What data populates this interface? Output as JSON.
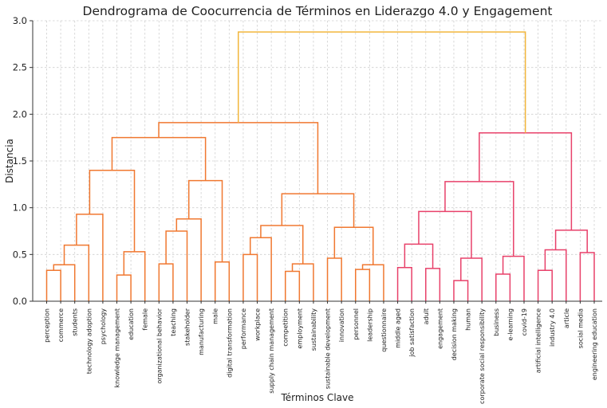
{
  "chart_data": {
    "type": "dendrogram",
    "title": "Dendrograma de Coocurrencia de Términos en Liderazgo 4.0 y Engagement",
    "xlabel": "Términos Clave",
    "ylabel": "Distancia",
    "ylim": [
      0,
      3.0
    ],
    "yticks": [
      "0.0",
      "0.5",
      "1.0",
      "1.5",
      "2.0",
      "2.5",
      "3.0"
    ],
    "grid": true,
    "colors": {
      "cluster_1": "#f07830",
      "cluster_2": "#e8416a",
      "root": "#f2b63c"
    },
    "leaves": [
      "perception",
      "commerce",
      "students",
      "technology adoption",
      "psychology",
      "knowledge management",
      "education",
      "female",
      "organizational behavior",
      "teaching",
      "stakeholder",
      "manufacturing",
      "male",
      "digital transformation",
      "performance",
      "workplace",
      "supply chain management",
      "competition",
      "employment",
      "sustainability",
      "sustainable development",
      "innovation",
      "personnel",
      "leadership",
      "questionnaire",
      "middle aged",
      "job satisfaction",
      "adult",
      "engagement",
      "decision making",
      "human",
      "corporate social responsibility",
      "business",
      "e-learning",
      "covid-19",
      "artificial intelligence",
      "industry 4.0",
      "article",
      "social media",
      "engineering education"
    ],
    "merges": [
      {
        "a": "L0",
        "b": "L1",
        "h": 0.33,
        "c": "cluster_1"
      },
      {
        "a": "M0",
        "b": "L2",
        "h": 0.39,
        "c": "cluster_1"
      },
      {
        "a": "M1",
        "b": "L3",
        "h": 0.6,
        "c": "cluster_1"
      },
      {
        "a": "M2",
        "b": "L4",
        "h": 0.93,
        "c": "cluster_1"
      },
      {
        "a": "L5",
        "b": "L6",
        "h": 0.28,
        "c": "cluster_1"
      },
      {
        "a": "M4",
        "b": "L7",
        "h": 0.53,
        "c": "cluster_1"
      },
      {
        "a": "M3",
        "b": "M5",
        "h": 1.4,
        "c": "cluster_1"
      },
      {
        "a": "L8",
        "b": "L9",
        "h": 0.4,
        "c": "cluster_1"
      },
      {
        "a": "M7",
        "b": "L10",
        "h": 0.75,
        "c": "cluster_1"
      },
      {
        "a": "M8",
        "b": "L11",
        "h": 0.88,
        "c": "cluster_1"
      },
      {
        "a": "L12",
        "b": "L13",
        "h": 0.42,
        "c": "cluster_1"
      },
      {
        "a": "M9",
        "b": "M10",
        "h": 1.29,
        "c": "cluster_1"
      },
      {
        "a": "M6",
        "b": "M11",
        "h": 1.75,
        "c": "cluster_1"
      },
      {
        "a": "L14",
        "b": "L15",
        "h": 0.5,
        "c": "cluster_1"
      },
      {
        "a": "M13",
        "b": "L16",
        "h": 0.68,
        "c": "cluster_1"
      },
      {
        "a": "L17",
        "b": "L18",
        "h": 0.32,
        "c": "cluster_1"
      },
      {
        "a": "M15",
        "b": "L19",
        "h": 0.4,
        "c": "cluster_1"
      },
      {
        "a": "M14",
        "b": "M16",
        "h": 0.81,
        "c": "cluster_1"
      },
      {
        "a": "L20",
        "b": "L21",
        "h": 0.46,
        "c": "cluster_1"
      },
      {
        "a": "L22",
        "b": "L23",
        "h": 0.34,
        "c": "cluster_1"
      },
      {
        "a": "M19",
        "b": "L24",
        "h": 0.39,
        "c": "cluster_1"
      },
      {
        "a": "M18",
        "b": "M20",
        "h": 0.79,
        "c": "cluster_1"
      },
      {
        "a": "M17",
        "b": "M21",
        "h": 1.15,
        "c": "cluster_1"
      },
      {
        "a": "M12",
        "b": "M22",
        "h": 1.91,
        "c": "cluster_1"
      },
      {
        "a": "L25",
        "b": "L26",
        "h": 0.36,
        "c": "cluster_2"
      },
      {
        "a": "L27",
        "b": "L28",
        "h": 0.35,
        "c": "cluster_2"
      },
      {
        "a": "M24",
        "b": "M25",
        "h": 0.61,
        "c": "cluster_2"
      },
      {
        "a": "L29",
        "b": "L30",
        "h": 0.22,
        "c": "cluster_2"
      },
      {
        "a": "M27",
        "b": "L31",
        "h": 0.46,
        "c": "cluster_2"
      },
      {
        "a": "M26",
        "b": "M28",
        "h": 0.96,
        "c": "cluster_2"
      },
      {
        "a": "L32",
        "b": "L33",
        "h": 0.29,
        "c": "cluster_2"
      },
      {
        "a": "M30",
        "b": "L34",
        "h": 0.48,
        "c": "cluster_2"
      },
      {
        "a": "M29",
        "b": "M31",
        "h": 1.28,
        "c": "cluster_2"
      },
      {
        "a": "L35",
        "b": "L36",
        "h": 0.33,
        "c": "cluster_2"
      },
      {
        "a": "M33",
        "b": "L37",
        "h": 0.55,
        "c": "cluster_2"
      },
      {
        "a": "L38",
        "b": "L39",
        "h": 0.52,
        "c": "cluster_2"
      },
      {
        "a": "M34",
        "b": "M35",
        "h": 0.76,
        "c": "cluster_2"
      },
      {
        "a": "M32",
        "b": "M36",
        "h": 1.8,
        "c": "cluster_2"
      },
      {
        "a": "M23",
        "b": "M37",
        "h": 2.88,
        "c": "root"
      }
    ]
  }
}
